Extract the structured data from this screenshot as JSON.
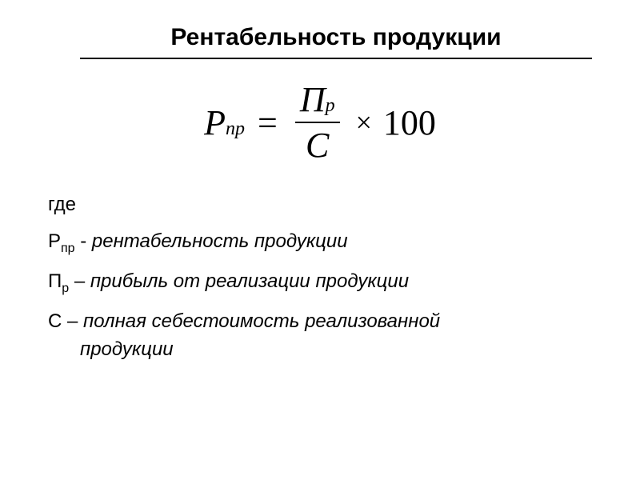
{
  "title": "Рентабельность продукции",
  "formula": {
    "lhs_main": "Р",
    "lhs_sub": "пр",
    "eq": "=",
    "num_main": "П",
    "num_sub": "р",
    "den": "С",
    "times": "×",
    "hundred": "100"
  },
  "where_label": "где",
  "defs": [
    {
      "sym": "Р",
      "sym_sub": "пр",
      "dash": " - ",
      "desc": "рентабельность продукции"
    },
    {
      "sym": "П",
      "sym_sub": "р",
      "dash": " – ",
      "desc": "прибыль от реализации продукции"
    },
    {
      "sym": "С",
      "sym_sub": "",
      "dash": " – ",
      "desc": "полная себестоимость реализованной",
      "desc2": "продукции"
    }
  ],
  "style": {
    "background": "#ffffff",
    "text_color": "#000000",
    "title_fontsize": 30,
    "formula_fontsize": 44,
    "body_fontsize": 24
  }
}
